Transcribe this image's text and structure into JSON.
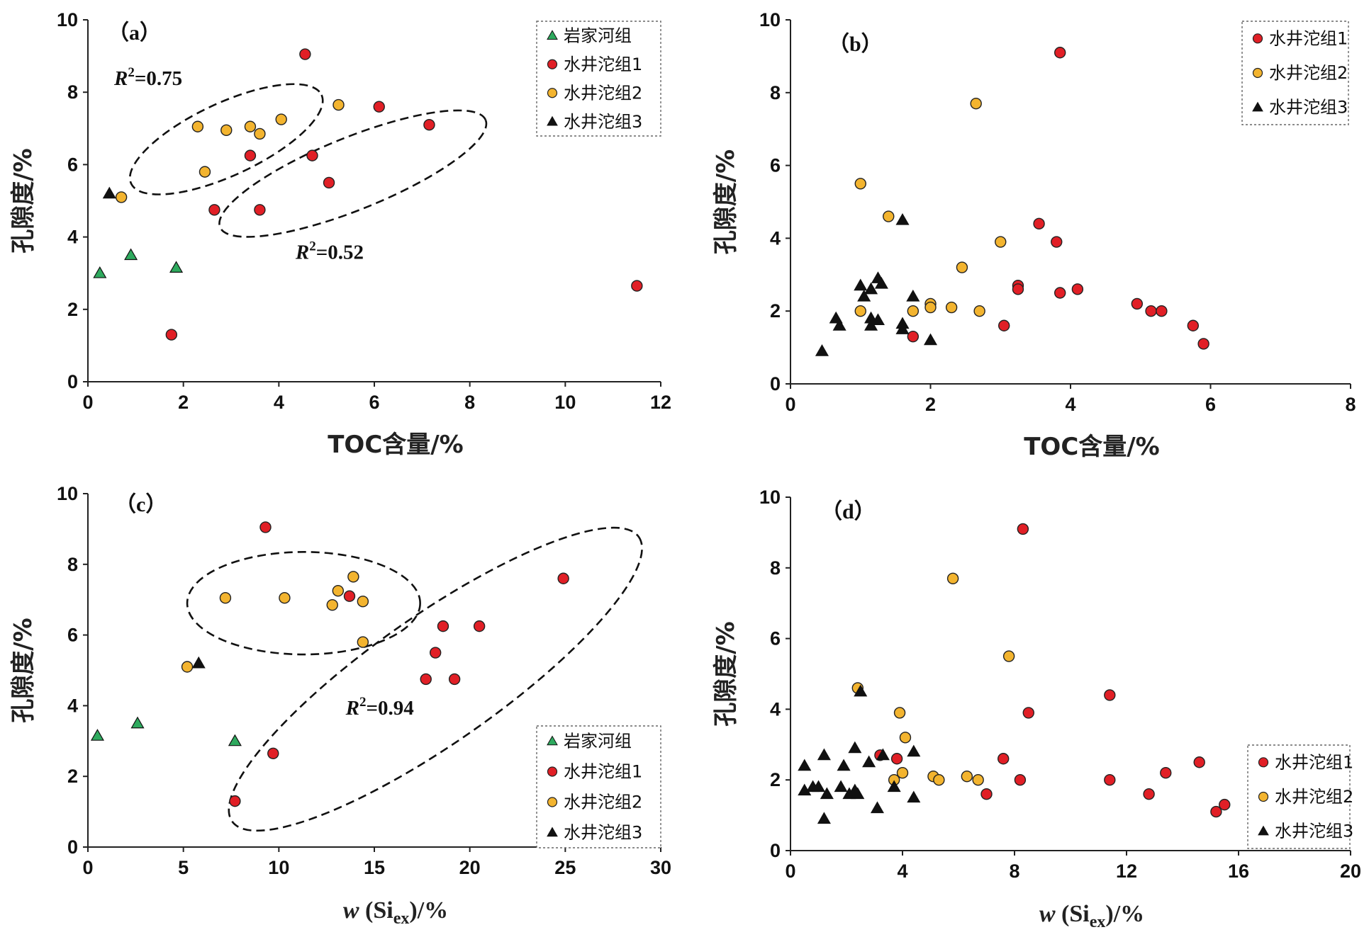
{
  "colors": {
    "岩家河组": "#2eaa5e",
    "水井沱组1": "#e11f26",
    "水井沱组2": "#f3b42f",
    "水井沱组3": "#111111"
  },
  "chart_data": [
    {
      "type": "scatter",
      "panel_label": "（a）",
      "xlabel": "TOC含量/%",
      "ylabel": "孔隙度/%",
      "xlim": [
        0,
        12
      ],
      "ylim": [
        0,
        10
      ],
      "xticks": [
        "0",
        "2",
        "4",
        "6",
        "8",
        "10",
        "12"
      ],
      "yticks": [
        "0",
        "2",
        "4",
        "6",
        "8",
        "10"
      ],
      "legend_position": "top-right",
      "series": [
        {
          "name": "岩家河组",
          "marker": "triangle",
          "points": [
            [
              0.25,
              3.0
            ],
            [
              0.9,
              3.5
            ],
            [
              1.85,
              3.15
            ]
          ]
        },
        {
          "name": "水井沱组1",
          "marker": "circle",
          "points": [
            [
              4.55,
              9.05
            ],
            [
              6.1,
              7.6
            ],
            [
              7.15,
              7.1
            ],
            [
              3.4,
              6.25
            ],
            [
              4.7,
              6.25
            ],
            [
              5.05,
              5.5
            ],
            [
              2.65,
              4.75
            ],
            [
              3.6,
              4.75
            ],
            [
              1.75,
              1.3
            ],
            [
              11.5,
              2.65
            ]
          ]
        },
        {
          "name": "水井沱组2",
          "marker": "circle",
          "points": [
            [
              5.25,
              7.65
            ],
            [
              4.05,
              7.25
            ],
            [
              2.3,
              7.05
            ],
            [
              3.4,
              7.05
            ],
            [
              2.9,
              6.95
            ],
            [
              3.6,
              6.85
            ],
            [
              2.45,
              5.8
            ],
            [
              0.7,
              5.1
            ]
          ]
        },
        {
          "name": "水井沱组3",
          "marker": "triangle",
          "points": [
            [
              0.45,
              5.2
            ]
          ]
        }
      ],
      "annotations": [
        {
          "type": "ellipse",
          "cx": 2.9,
          "cy": 6.7,
          "rx": 2.2,
          "ry": 1.0,
          "angle_deg": -25
        },
        {
          "type": "ellipse",
          "cx": 5.55,
          "cy": 5.75,
          "rx": 3.0,
          "ry": 1.0,
          "angle_deg": -22
        },
        {
          "type": "text",
          "label": "R",
          "sup": "2",
          "value": "=0.75",
          "x": 0.55,
          "y": 8.2
        },
        {
          "type": "text",
          "label": "R",
          "sup": "2",
          "value": "=0.52",
          "x": 4.35,
          "y": 3.4
        }
      ]
    },
    {
      "type": "scatter",
      "panel_label": "（b）",
      "xlabel": "TOC含量/%",
      "ylabel": "孔隙度/%",
      "xlim": [
        0,
        8
      ],
      "ylim": [
        0,
        10
      ],
      "xticks": [
        "0",
        "2",
        "4",
        "6",
        "8"
      ],
      "yticks": [
        "0",
        "2",
        "4",
        "6",
        "8",
        "10"
      ],
      "legend_position": "top-right",
      "series": [
        {
          "name": "水井沱组1",
          "marker": "circle",
          "points": [
            [
              3.85,
              9.1
            ],
            [
              3.55,
              4.4
            ],
            [
              3.8,
              3.9
            ],
            [
              3.25,
              2.7
            ],
            [
              3.25,
              2.6
            ],
            [
              3.85,
              2.5
            ],
            [
              4.1,
              2.6
            ],
            [
              4.95,
              2.2
            ],
            [
              5.15,
              2.0
            ],
            [
              5.3,
              2.0
            ],
            [
              5.75,
              1.6
            ],
            [
              5.9,
              1.1
            ],
            [
              3.05,
              1.6
            ],
            [
              1.75,
              1.3
            ]
          ]
        },
        {
          "name": "水井沱组2",
          "marker": "circle",
          "points": [
            [
              2.65,
              7.7
            ],
            [
              1.0,
              5.5
            ],
            [
              1.4,
              4.6
            ],
            [
              3.0,
              3.9
            ],
            [
              2.45,
              3.2
            ],
            [
              2.0,
              2.2
            ],
            [
              2.0,
              2.1
            ],
            [
              2.3,
              2.1
            ],
            [
              1.75,
              2.0
            ],
            [
              2.7,
              2.0
            ],
            [
              1.0,
              2.0
            ]
          ]
        },
        {
          "name": "水井沱组3",
          "marker": "triangle",
          "points": [
            [
              1.6,
              4.5
            ],
            [
              1.25,
              2.9
            ],
            [
              1.3,
              2.75
            ],
            [
              1.0,
              2.7
            ],
            [
              1.15,
              2.6
            ],
            [
              1.05,
              2.4
            ],
            [
              1.75,
              2.4
            ],
            [
              0.65,
              1.8
            ],
            [
              0.7,
              1.6
            ],
            [
              1.15,
              1.8
            ],
            [
              1.25,
              1.75
            ],
            [
              1.15,
              1.6
            ],
            [
              1.6,
              1.65
            ],
            [
              1.6,
              1.5
            ],
            [
              2.0,
              1.2
            ],
            [
              0.45,
              0.9
            ]
          ]
        }
      ],
      "annotations": []
    },
    {
      "type": "scatter",
      "panel_label": "（c）",
      "xlabel": "w (Si_ex)/%",
      "ylabel": "孔隙度/%",
      "xlim": [
        0,
        30
      ],
      "ylim": [
        0,
        10
      ],
      "xticks": [
        "0",
        "5",
        "10",
        "15",
        "20",
        "25",
        "30"
      ],
      "yticks": [
        "0",
        "2",
        "4",
        "6",
        "8",
        "10"
      ],
      "legend_position": "bottom-right",
      "series": [
        {
          "name": "岩家河组",
          "marker": "triangle",
          "points": [
            [
              0.5,
              3.15
            ],
            [
              2.6,
              3.5
            ],
            [
              7.7,
              3.0
            ]
          ]
        },
        {
          "name": "水井沱组1",
          "marker": "circle",
          "points": [
            [
              9.3,
              9.05
            ],
            [
              24.9,
              7.6
            ],
            [
              13.7,
              7.1
            ],
            [
              18.6,
              6.25
            ],
            [
              20.5,
              6.25
            ],
            [
              18.2,
              5.5
            ],
            [
              17.7,
              4.75
            ],
            [
              19.2,
              4.75
            ],
            [
              9.7,
              2.65
            ],
            [
              7.7,
              1.3
            ]
          ]
        },
        {
          "name": "水井沱组2",
          "marker": "circle",
          "points": [
            [
              13.9,
              7.65
            ],
            [
              13.1,
              7.25
            ],
            [
              7.2,
              7.05
            ],
            [
              10.3,
              7.05
            ],
            [
              14.4,
              6.95
            ],
            [
              12.8,
              6.85
            ],
            [
              14.4,
              5.8
            ],
            [
              5.2,
              5.1
            ]
          ]
        },
        {
          "name": "水井沱组3",
          "marker": "triangle",
          "points": [
            [
              5.8,
              5.2
            ]
          ]
        }
      ],
      "annotations": [
        {
          "type": "ellipse",
          "cx": 11.3,
          "cy": 6.9,
          "rx": 6.1,
          "ry": 1.45,
          "angle_deg": 0
        },
        {
          "type": "ellipse",
          "cx": 18.2,
          "cy": 4.75,
          "rx": 13.0,
          "ry": 1.8,
          "angle_deg": -35
        },
        {
          "type": "text",
          "label": "R",
          "sup": "2",
          "value": "=0.94",
          "x": 13.5,
          "y": 3.75
        }
      ]
    },
    {
      "type": "scatter",
      "panel_label": "（d）",
      "xlabel": "w (Si_ex)/%",
      "ylabel": "孔隙度/%",
      "xlim": [
        0,
        20
      ],
      "ylim": [
        0,
        10
      ],
      "xticks": [
        "0",
        "4",
        "8",
        "12",
        "16",
        "20"
      ],
      "yticks": [
        "0",
        "2",
        "4",
        "6",
        "8",
        "10"
      ],
      "legend_position": "bottom-right",
      "series": [
        {
          "name": "水井沱组1",
          "marker": "circle",
          "points": [
            [
              8.3,
              9.1
            ],
            [
              11.4,
              4.4
            ],
            [
              8.5,
              3.9
            ],
            [
              3.8,
              2.6
            ],
            [
              3.2,
              2.7
            ],
            [
              7.6,
              2.6
            ],
            [
              8.2,
              2.0
            ],
            [
              11.4,
              2.0
            ],
            [
              13.4,
              2.2
            ],
            [
              14.6,
              2.5
            ],
            [
              7.0,
              1.6
            ],
            [
              12.8,
              1.6
            ],
            [
              15.5,
              1.3
            ],
            [
              15.2,
              1.1
            ]
          ]
        },
        {
          "name": "水井沱组2",
          "marker": "circle",
          "points": [
            [
              5.8,
              7.7
            ],
            [
              7.8,
              5.5
            ],
            [
              2.4,
              4.6
            ],
            [
              3.9,
              3.9
            ],
            [
              4.1,
              3.2
            ],
            [
              4.0,
              2.2
            ],
            [
              5.1,
              2.1
            ],
            [
              6.3,
              2.1
            ],
            [
              3.7,
              2.0
            ],
            [
              5.3,
              2.0
            ],
            [
              6.7,
              2.0
            ]
          ]
        },
        {
          "name": "水井沱组3",
          "marker": "triangle",
          "points": [
            [
              2.5,
              4.5
            ],
            [
              2.3,
              2.9
            ],
            [
              4.4,
              2.8
            ],
            [
              1.2,
              2.7
            ],
            [
              3.3,
              2.7
            ],
            [
              0.5,
              2.4
            ],
            [
              1.9,
              2.4
            ],
            [
              2.8,
              2.5
            ],
            [
              0.5,
              1.7
            ],
            [
              0.8,
              1.8
            ],
            [
              1.0,
              1.8
            ],
            [
              1.3,
              1.6
            ],
            [
              1.8,
              1.8
            ],
            [
              2.1,
              1.6
            ],
            [
              2.3,
              1.7
            ],
            [
              2.4,
              1.6
            ],
            [
              3.7,
              1.8
            ],
            [
              4.4,
              1.5
            ],
            [
              3.1,
              1.2
            ],
            [
              1.2,
              0.9
            ]
          ]
        }
      ],
      "annotations": []
    }
  ]
}
